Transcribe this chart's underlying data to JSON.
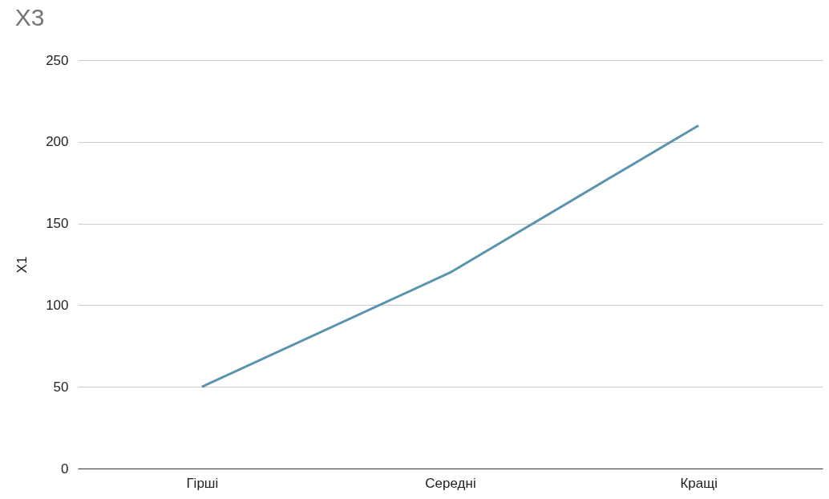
{
  "chart_data": {
    "type": "line",
    "title": "X3",
    "ylabel": "X1",
    "categories": [
      "Гірші",
      "Середні",
      "Кращі"
    ],
    "series": [
      {
        "color": "#5b93af",
        "values": [
          50,
          120,
          210
        ]
      }
    ],
    "ylim": [
      0,
      250
    ],
    "yticks": [
      0,
      50,
      100,
      150,
      200,
      250
    ],
    "grid": "y",
    "marker": "none",
    "line_style": "solid"
  }
}
